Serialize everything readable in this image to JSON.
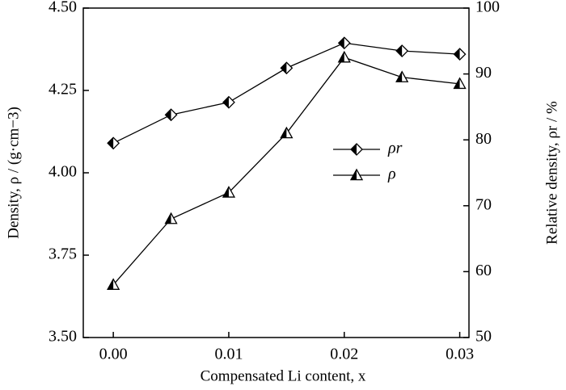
{
  "chart_data": {
    "type": "line",
    "x_label": "Compensated Li content, x",
    "y_label": "Density, ρ / (g·cm−3)",
    "y2_label": "Relative density, ρr / %",
    "x": [
      0,
      0.005,
      0.01,
      0.015,
      0.02,
      0.025,
      0.03
    ],
    "xlim": [
      -0.0026,
      0.0308
    ],
    "xticks": [
      {
        "value": 0,
        "label": "0.00"
      },
      0.01,
      0.02,
      0.03
    ],
    "ylim": [
      3.5,
      4.5
    ],
    "yticks": [
      {
        "value": 3.5,
        "label": "3.50"
      },
      3.75,
      {
        "value": 4,
        "label": "4.00"
      },
      4.25,
      {
        "value": 4.5,
        "label": "4.50"
      }
    ],
    "y2lim": [
      50,
      100
    ],
    "y2ticks": [
      50,
      60,
      70,
      80,
      90,
      100
    ],
    "series": [
      {
        "name": "ρr",
        "color": "#000000",
        "marker": "diamond",
        "axis": "y2",
        "values": [
          79.5,
          83.8,
          85.7,
          90.9,
          94.7,
          93.5,
          93.0
        ]
      },
      {
        "name": "ρ",
        "color": "#000000",
        "marker": "triangle",
        "values": [
          3.66,
          3.86,
          3.94,
          4.12,
          4.35,
          4.29,
          4.27
        ]
      }
    ]
  }
}
